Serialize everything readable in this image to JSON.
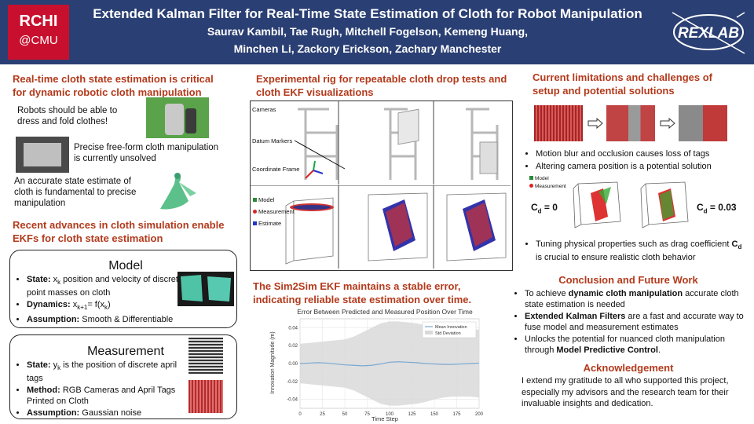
{
  "header": {
    "logo_line1": "RCHI",
    "logo_line2": "@CMU",
    "title": "Extended Kalman Filter for Real-Time State Estimation of Cloth for Robot Manipulation",
    "authors_line1": "Saurav Kambil, Tae Rugh, Mitchell Fogelson, Kemeng Huang,",
    "authors_line2": "Minchen Li, Zackory Erickson, Zachary Manchester",
    "lab_logo": "REXLAB"
  },
  "left": {
    "heading1": "Real-time cloth state estimation is critical for dynamic robotic cloth manipulation",
    "p1": "Robots should be able to dress and fold clothes!",
    "p2": "Precise free-form cloth manipulation is currently unsolved",
    "p3": "An accurate state estimate of cloth is fundamental to precise manipulation",
    "heading2": "Recent advances in cloth simulation enable EKFs for cloth state estimation",
    "model": {
      "title": "Model",
      "state_label": "State:",
      "state_text": "x_k position and velocity of discrete point masses on cloth",
      "dynamics_label": "Dynamics:",
      "dynamics_text": "x_k+1 = f(x_k)",
      "assumption_label": "Assumption:",
      "assumption_text": "Smooth & Differentiable"
    },
    "measurement": {
      "title": "Measurement",
      "state_label": "State:",
      "state_text": "y_k is the position of discrete april tags",
      "method_label": "Method:",
      "method_text": "RGB Cameras and April Tags Printed on Cloth",
      "assumption_label": "Assumption:",
      "assumption_text": "Gaussian noise"
    }
  },
  "middle": {
    "heading1": "Experimental rig for repeatable cloth drop tests and cloth EKF visualizations",
    "rig_labels": [
      "Cameras",
      "Datum Markers",
      "Coordinate Frame"
    ],
    "legend": [
      "Model",
      "Measurement",
      "Estimate"
    ],
    "heading2": "The Sim2Sim EKF maintains a stable error, indicating reliable state estimation over time."
  },
  "chart_data": {
    "type": "line",
    "title": "Error Between Predicted and Measured Position Over Time",
    "xlabel": "Time Step",
    "ylabel": "Innovation Magnitude (m)",
    "xlim": [
      0,
      200
    ],
    "ylim": [
      -0.05,
      0.05
    ],
    "xticks": [
      0,
      25,
      50,
      75,
      100,
      125,
      150,
      175,
      200
    ],
    "yticks": [
      -0.04,
      -0.02,
      0.0,
      0.02,
      0.04
    ],
    "grid": true,
    "legend_position": "top-right",
    "series": [
      {
        "name": "Mean Innovation",
        "color": "#7aa8d2",
        "x": [
          0,
          10,
          20,
          30,
          40,
          50,
          60,
          70,
          80,
          90,
          100,
          110,
          120,
          130,
          140,
          150,
          160,
          170,
          180,
          190,
          200
        ],
        "values": [
          0.0,
          0.0005,
          0.001,
          0.0005,
          -0.0005,
          -0.0015,
          -0.002,
          -0.0025,
          -0.002,
          -0.0005,
          0.0015,
          0.002,
          0.0015,
          0.001,
          0.0,
          -0.0005,
          -0.001,
          -0.001,
          -0.0005,
          0.0,
          0.0005
        ]
      },
      {
        "name": "Std Deviation",
        "color": "#d9d9d9",
        "x": [
          0,
          10,
          20,
          30,
          40,
          50,
          60,
          70,
          80,
          90,
          100,
          110,
          120,
          130,
          140,
          150,
          160,
          170,
          180,
          190,
          200
        ],
        "upper": [
          0.022,
          0.023,
          0.024,
          0.025,
          0.026,
          0.027,
          0.03,
          0.035,
          0.04,
          0.045,
          0.047,
          0.047,
          0.046,
          0.045,
          0.043,
          0.04,
          0.038,
          0.037,
          0.037,
          0.037,
          0.038
        ],
        "lower": [
          -0.022,
          -0.023,
          -0.024,
          -0.025,
          -0.026,
          -0.027,
          -0.03,
          -0.035,
          -0.04,
          -0.045,
          -0.047,
          -0.047,
          -0.046,
          -0.045,
          -0.043,
          -0.04,
          -0.038,
          -0.037,
          -0.037,
          -0.037,
          -0.038
        ]
      }
    ]
  },
  "right": {
    "heading1": "Current limitations and challenges of setup and potential solutions",
    "bullets1": [
      "Motion blur and occlusion causes loss of tags",
      "Altering camera position is a potential solution"
    ],
    "legend": [
      "Model",
      "Measurement"
    ],
    "cd_left": "C",
    "cd_left_sub": "d",
    "cd_left_val": " = 0",
    "cd_right_val": " = 0.03",
    "bullet2_a": "Tuning physical properties such as drag coefficient ",
    "bullet2_b": "C",
    "bullet2_sub": "d",
    "bullet2_c": " is crucial to ensure realistic cloth behavior",
    "conclusion_heading": "Conclusion and Future Work",
    "conclusion": [
      {
        "pre": "To achieve ",
        "bold": "dynamic cloth manipulation",
        "post": " accurate cloth state estimation is needed"
      },
      {
        "pre": "",
        "bold": "Extended Kalman Filters",
        "post": " are a fast and accurate way to fuse model and measurement estimates"
      },
      {
        "pre": "Unlocks the potential for nuanced cloth manipulation through ",
        "bold": "Model Predictive Control",
        "post": "."
      }
    ],
    "ack_heading": "Acknowledgement",
    "ack_text": "I extend my gratitude to all who supported this project, especially my advisors and the research team for their invaluable insights and dedication."
  }
}
